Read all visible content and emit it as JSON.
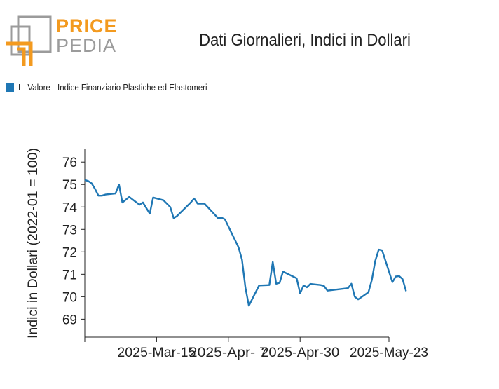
{
  "logo": {
    "top_text": "PRICE",
    "bottom_text": "PEDIA"
  },
  "chart_data": {
    "type": "line",
    "title": "Dati Giornalieri, Indici in Dollari",
    "ylabel": "Indici in Dollari (2022-01 = 100)",
    "xlabel": "",
    "ylim": [
      68.2,
      76.6
    ],
    "yticks": [
      69,
      70,
      71,
      72,
      73,
      74,
      75,
      76
    ],
    "xlim": [
      "2025-02-28",
      "2025-05-28"
    ],
    "xticks": [
      {
        "date": "2025-02-28",
        "label": ""
      },
      {
        "date": "2025-03-21",
        "label": "2025-Mar-15"
      },
      {
        "date": "2025-04-11",
        "label": "2025-Apr- 7"
      },
      {
        "date": "2025-05-02",
        "label": "2025-Apr-30"
      },
      {
        "date": "2025-05-28",
        "label": "2025-May-23"
      }
    ],
    "grid": false,
    "legend_position": "top-left",
    "color": "#1f77b4",
    "series": [
      {
        "name": "I - Valore - Indice Finanziario Plastiche ed Elastomeri",
        "points": [
          [
            "2025-02-28",
            75.2
          ],
          [
            "2025-03-01",
            75.15
          ],
          [
            "2025-03-02",
            75.05
          ],
          [
            "2025-03-03",
            74.8
          ],
          [
            "2025-03-04",
            74.5
          ],
          [
            "2025-03-05",
            74.5
          ],
          [
            "2025-03-06",
            74.55
          ],
          [
            "2025-03-09",
            74.6
          ],
          [
            "2025-03-10",
            75.0
          ],
          [
            "2025-03-11",
            74.2
          ],
          [
            "2025-03-13",
            74.45
          ],
          [
            "2025-03-16",
            74.1
          ],
          [
            "2025-03-17",
            74.2
          ],
          [
            "2025-03-19",
            73.7
          ],
          [
            "2025-03-20",
            74.42
          ],
          [
            "2025-03-23",
            74.3
          ],
          [
            "2025-03-25",
            74.0
          ],
          [
            "2025-03-26",
            73.5
          ],
          [
            "2025-03-27",
            73.6
          ],
          [
            "2025-03-31",
            74.2
          ],
          [
            "2025-04-01",
            74.38
          ],
          [
            "2025-04-02",
            74.15
          ],
          [
            "2025-04-04",
            74.15
          ],
          [
            "2025-04-08",
            73.5
          ],
          [
            "2025-04-09",
            73.52
          ],
          [
            "2025-04-10",
            73.45
          ],
          [
            "2025-04-14",
            72.2
          ],
          [
            "2025-04-15",
            71.65
          ],
          [
            "2025-04-16",
            70.4
          ],
          [
            "2025-04-17",
            69.6
          ],
          [
            "2025-04-20",
            70.5
          ],
          [
            "2025-04-23",
            70.52
          ],
          [
            "2025-04-24",
            71.55
          ],
          [
            "2025-04-25",
            70.58
          ],
          [
            "2025-04-26",
            70.62
          ],
          [
            "2025-04-27",
            71.12
          ],
          [
            "2025-05-01",
            70.82
          ],
          [
            "2025-05-02",
            70.15
          ],
          [
            "2025-05-03",
            70.5
          ],
          [
            "2025-05-04",
            70.42
          ],
          [
            "2025-05-05",
            70.57
          ],
          [
            "2025-05-08",
            70.52
          ],
          [
            "2025-05-09",
            70.48
          ],
          [
            "2025-05-10",
            70.27
          ],
          [
            "2025-05-16",
            70.38
          ],
          [
            "2025-05-17",
            70.58
          ],
          [
            "2025-05-18",
            70.0
          ],
          [
            "2025-05-19",
            69.88
          ],
          [
            "2025-05-22",
            70.2
          ],
          [
            "2025-05-23",
            70.75
          ],
          [
            "2025-05-24",
            71.6
          ],
          [
            "2025-05-25",
            72.1
          ],
          [
            "2025-05-26",
            72.07
          ],
          [
            "2025-05-29",
            70.65
          ],
          [
            "2025-05-30",
            70.9
          ],
          [
            "2025-05-31",
            70.92
          ],
          [
            "2025-06-01",
            70.78
          ],
          [
            "2025-06-02",
            70.25
          ]
        ]
      }
    ]
  }
}
